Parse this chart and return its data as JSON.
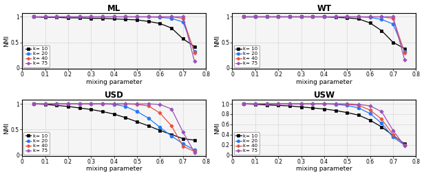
{
  "titles": [
    "ML",
    "WT",
    "USD",
    "USW"
  ],
  "xlabel": "mixing parameter",
  "ylabel": "NMI",
  "legend_labels": [
    "k= 10",
    "k= 20",
    "k= 40",
    "k= 75"
  ],
  "colors": [
    "black",
    "#1f77ff",
    "#e8503a",
    "#9b4fba"
  ],
  "xlim": [
    0,
    0.8
  ],
  "background": "#f0f0f0",
  "ML": {
    "x": [
      0.05,
      0.1,
      0.15,
      0.2,
      0.25,
      0.3,
      0.35,
      0.4,
      0.45,
      0.5,
      0.55,
      0.6,
      0.65,
      0.7,
      0.75
    ],
    "k10": [
      1.0,
      0.99,
      0.99,
      0.98,
      0.98,
      0.97,
      0.97,
      0.96,
      0.95,
      0.94,
      0.91,
      0.87,
      0.78,
      0.57,
      0.42
    ],
    "k20": [
      1.0,
      1.0,
      1.0,
      1.0,
      1.0,
      1.0,
      1.0,
      1.0,
      1.0,
      1.0,
      1.0,
      0.99,
      0.97,
      0.9,
      0.32
    ],
    "k40": [
      1.0,
      1.0,
      1.0,
      1.0,
      1.0,
      1.0,
      1.0,
      1.0,
      1.0,
      1.0,
      1.0,
      1.0,
      1.0,
      0.97,
      0.3
    ],
    "k75": [
      1.0,
      1.0,
      1.0,
      1.0,
      1.0,
      1.0,
      1.0,
      1.0,
      1.0,
      1.0,
      1.0,
      1.0,
      1.0,
      1.0,
      0.13
    ]
  },
  "WT": {
    "x": [
      0.05,
      0.1,
      0.15,
      0.2,
      0.25,
      0.3,
      0.35,
      0.4,
      0.45,
      0.5,
      0.55,
      0.6,
      0.65,
      0.7,
      0.75
    ],
    "k10": [
      1.0,
      1.0,
      1.0,
      1.0,
      1.0,
      1.0,
      1.0,
      1.0,
      0.99,
      0.98,
      0.96,
      0.88,
      0.73,
      0.5,
      0.38
    ],
    "k20": [
      1.0,
      1.0,
      1.0,
      1.0,
      1.0,
      1.0,
      1.0,
      1.0,
      1.0,
      1.0,
      1.0,
      0.99,
      0.95,
      0.86,
      0.32
    ],
    "k40": [
      1.0,
      1.0,
      1.0,
      1.0,
      1.0,
      1.0,
      1.0,
      1.0,
      1.0,
      1.0,
      1.0,
      1.0,
      1.0,
      0.97,
      0.3
    ],
    "k75": [
      1.0,
      1.0,
      1.0,
      1.0,
      1.0,
      1.0,
      1.0,
      1.0,
      1.0,
      1.0,
      1.0,
      1.0,
      1.0,
      1.0,
      0.16
    ]
  },
  "USD": {
    "x": [
      0.05,
      0.1,
      0.15,
      0.2,
      0.25,
      0.3,
      0.35,
      0.4,
      0.45,
      0.5,
      0.55,
      0.6,
      0.65,
      0.7,
      0.75
    ],
    "k10": [
      1.0,
      0.99,
      0.97,
      0.95,
      0.92,
      0.89,
      0.85,
      0.8,
      0.73,
      0.65,
      0.57,
      0.48,
      0.4,
      0.32,
      0.29
    ],
    "k20": [
      1.0,
      1.0,
      1.0,
      1.0,
      1.0,
      1.0,
      1.0,
      0.99,
      0.95,
      0.85,
      0.72,
      0.54,
      0.37,
      0.22,
      0.1
    ],
    "k40": [
      1.0,
      1.0,
      1.0,
      1.0,
      1.0,
      1.0,
      1.0,
      1.0,
      1.0,
      0.99,
      0.96,
      0.82,
      0.57,
      0.17,
      0.07
    ],
    "k75": [
      1.0,
      1.0,
      1.0,
      1.0,
      1.0,
      1.0,
      1.0,
      1.0,
      1.0,
      1.0,
      1.0,
      0.99,
      0.9,
      0.45,
      0.05
    ]
  },
  "USW": {
    "x": [
      0.05,
      0.1,
      0.15,
      0.2,
      0.25,
      0.3,
      0.35,
      0.4,
      0.45,
      0.5,
      0.55,
      0.6,
      0.65,
      0.7,
      0.75
    ],
    "k10": [
      1.0,
      0.99,
      0.98,
      0.97,
      0.96,
      0.94,
      0.92,
      0.9,
      0.87,
      0.83,
      0.78,
      0.68,
      0.55,
      0.38,
      0.22
    ],
    "k20": [
      1.0,
      1.0,
      1.0,
      1.0,
      1.0,
      1.0,
      1.0,
      1.0,
      0.99,
      0.97,
      0.92,
      0.81,
      0.62,
      0.35,
      0.19
    ],
    "k40": [
      1.0,
      1.0,
      1.0,
      1.0,
      1.0,
      1.0,
      1.0,
      1.0,
      1.0,
      0.99,
      0.97,
      0.88,
      0.7,
      0.4,
      0.2
    ],
    "k75": [
      1.0,
      1.0,
      1.0,
      1.0,
      1.0,
      1.0,
      1.0,
      1.0,
      1.0,
      1.0,
      0.99,
      0.96,
      0.85,
      0.48,
      0.18
    ]
  },
  "ML_yticks": [
    0,
    0.5,
    1
  ],
  "ML_ylim": [
    -0.02,
    1.08
  ],
  "WT_yticks": [
    0,
    0.5,
    1
  ],
  "WT_ylim": [
    -0.02,
    1.08
  ],
  "USD_yticks": [
    0,
    0.5,
    1
  ],
  "USD_ylim": [
    -0.02,
    1.08
  ],
  "USW_yticks": [
    0,
    0.2,
    0.4,
    0.6,
    0.8,
    1.0
  ],
  "USW_ylim": [
    -0.02,
    1.08
  ]
}
